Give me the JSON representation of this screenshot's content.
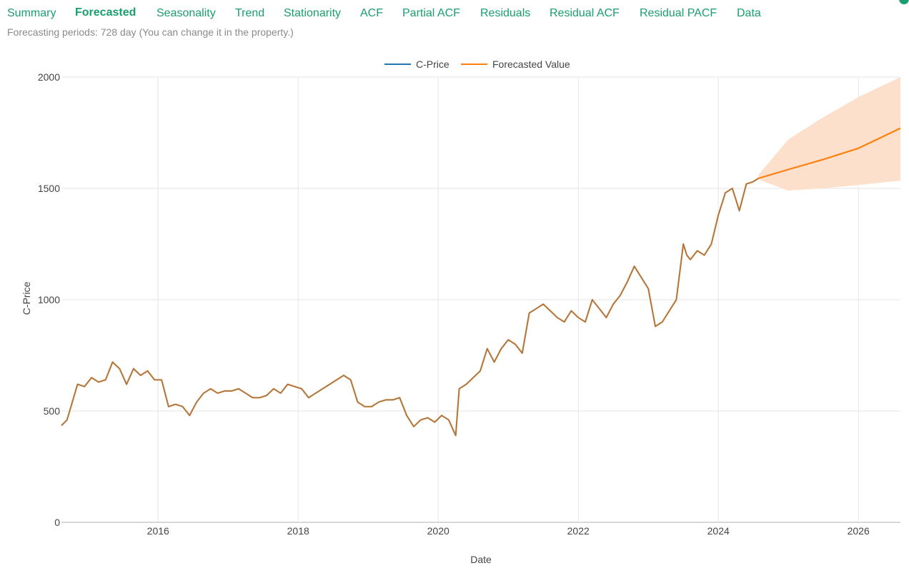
{
  "tabs": [
    {
      "label": "Summary",
      "active": false
    },
    {
      "label": "Forecasted",
      "active": true
    },
    {
      "label": "Seasonality",
      "active": false
    },
    {
      "label": "Trend",
      "active": false
    },
    {
      "label": "Stationarity",
      "active": false
    },
    {
      "label": "ACF",
      "active": false
    },
    {
      "label": "Partial ACF",
      "active": false
    },
    {
      "label": "Residuals",
      "active": false
    },
    {
      "label": "Residual ACF",
      "active": false
    },
    {
      "label": "Residual PACF",
      "active": false
    },
    {
      "label": "Data",
      "active": false
    }
  ],
  "subtitle": "Forecasting periods: 728 day (You can change it in the property.)",
  "colors": {
    "tab_text": "#1a9e6e",
    "actual_series": "#1f77b4",
    "forecast_series": "#ff7f0e",
    "forecast_band": "#fde0cc",
    "grid": "#e6e6e6",
    "axis_line": "#cccccc"
  },
  "chart_data": {
    "type": "line",
    "xlabel": "Date",
    "ylabel": "C-Price",
    "xlim": [
      2014.62,
      2026.6
    ],
    "ylim": [
      0,
      2000
    ],
    "x_ticks": [
      2016,
      2018,
      2020,
      2022,
      2024,
      2026
    ],
    "y_ticks": [
      0,
      500,
      1000,
      1500,
      2000
    ],
    "grid": true,
    "legend_position": "top-center",
    "series": [
      {
        "name": "C-Price",
        "color": "#1f77b4",
        "x": [
          2014.62,
          2014.7,
          2014.85,
          2014.95,
          2015.05,
          2015.15,
          2015.25,
          2015.35,
          2015.45,
          2015.55,
          2015.65,
          2015.75,
          2015.85,
          2015.95,
          2016.05,
          2016.15,
          2016.25,
          2016.35,
          2016.45,
          2016.55,
          2016.65,
          2016.75,
          2016.85,
          2016.95,
          2017.05,
          2017.15,
          2017.25,
          2017.35,
          2017.45,
          2017.55,
          2017.65,
          2017.75,
          2017.85,
          2017.95,
          2018.05,
          2018.15,
          2018.25,
          2018.35,
          2018.45,
          2018.55,
          2018.65,
          2018.75,
          2018.85,
          2018.95,
          2019.05,
          2019.15,
          2019.25,
          2019.35,
          2019.45,
          2019.55,
          2019.65,
          2019.75,
          2019.85,
          2019.95,
          2020.05,
          2020.15,
          2020.25,
          2020.3,
          2020.4,
          2020.5,
          2020.6,
          2020.7,
          2020.8,
          2020.9,
          2021.0,
          2021.1,
          2021.2,
          2021.3,
          2021.4,
          2021.5,
          2021.6,
          2021.7,
          2021.8,
          2021.9,
          2022.0,
          2022.1,
          2022.2,
          2022.3,
          2022.4,
          2022.5,
          2022.6,
          2022.7,
          2022.8,
          2022.9,
          2023.0,
          2023.1,
          2023.2,
          2023.3,
          2023.4,
          2023.5,
          2023.55,
          2023.6,
          2023.7,
          2023.8,
          2023.9,
          2024.0,
          2024.1,
          2024.2,
          2024.3,
          2024.4,
          2024.5,
          2024.57
        ],
        "values": [
          435,
          460,
          620,
          610,
          650,
          630,
          640,
          720,
          690,
          620,
          690,
          660,
          680,
          640,
          640,
          520,
          530,
          520,
          480,
          540,
          580,
          600,
          580,
          590,
          590,
          600,
          580,
          560,
          560,
          570,
          600,
          580,
          620,
          610,
          600,
          560,
          580,
          600,
          620,
          640,
          660,
          640,
          540,
          520,
          520,
          540,
          550,
          550,
          560,
          480,
          430,
          460,
          470,
          450,
          480,
          460,
          390,
          600,
          620,
          650,
          680,
          780,
          720,
          780,
          820,
          800,
          760,
          940,
          960,
          980,
          950,
          920,
          900,
          950,
          920,
          900,
          1000,
          960,
          920,
          980,
          1020,
          1080,
          1150,
          1100,
          1050,
          880,
          900,
          950,
          1000,
          1250,
          1200,
          1180,
          1220,
          1200,
          1250,
          1380,
          1480,
          1500,
          1400,
          1520,
          1530,
          1545
        ]
      },
      {
        "name": "Forecasted Value",
        "color": "#ff7f0e",
        "x": [
          2014.62,
          2014.7,
          2014.85,
          2014.95,
          2015.05,
          2015.15,
          2015.25,
          2015.35,
          2015.45,
          2015.55,
          2015.65,
          2015.75,
          2015.85,
          2015.95,
          2016.05,
          2016.15,
          2016.25,
          2016.35,
          2016.45,
          2016.55,
          2016.65,
          2016.75,
          2016.85,
          2016.95,
          2017.05,
          2017.15,
          2017.25,
          2017.35,
          2017.45,
          2017.55,
          2017.65,
          2017.75,
          2017.85,
          2017.95,
          2018.05,
          2018.15,
          2018.25,
          2018.35,
          2018.45,
          2018.55,
          2018.65,
          2018.75,
          2018.85,
          2018.95,
          2019.05,
          2019.15,
          2019.25,
          2019.35,
          2019.45,
          2019.55,
          2019.65,
          2019.75,
          2019.85,
          2019.95,
          2020.05,
          2020.15,
          2020.25,
          2020.3,
          2020.4,
          2020.5,
          2020.6,
          2020.7,
          2020.8,
          2020.9,
          2021.0,
          2021.1,
          2021.2,
          2021.3,
          2021.4,
          2021.5,
          2021.6,
          2021.7,
          2021.8,
          2021.9,
          2022.0,
          2022.1,
          2022.2,
          2022.3,
          2022.4,
          2022.5,
          2022.6,
          2022.7,
          2022.8,
          2022.9,
          2023.0,
          2023.1,
          2023.2,
          2023.3,
          2023.4,
          2023.5,
          2023.55,
          2023.6,
          2023.7,
          2023.8,
          2023.9,
          2024.0,
          2024.1,
          2024.2,
          2024.3,
          2024.4,
          2024.5,
          2024.57,
          2025.0,
          2025.5,
          2026.0,
          2026.6
        ],
        "values": [
          435,
          460,
          620,
          610,
          650,
          630,
          640,
          720,
          690,
          620,
          690,
          660,
          680,
          640,
          640,
          520,
          530,
          520,
          480,
          540,
          580,
          600,
          580,
          590,
          590,
          600,
          580,
          560,
          560,
          570,
          600,
          580,
          620,
          610,
          600,
          560,
          580,
          600,
          620,
          640,
          660,
          640,
          540,
          520,
          520,
          540,
          550,
          550,
          560,
          480,
          430,
          460,
          470,
          450,
          480,
          460,
          390,
          600,
          620,
          650,
          680,
          780,
          720,
          780,
          820,
          800,
          760,
          940,
          960,
          980,
          950,
          920,
          900,
          950,
          920,
          900,
          1000,
          960,
          920,
          980,
          1020,
          1080,
          1150,
          1100,
          1050,
          880,
          900,
          950,
          1000,
          1250,
          1200,
          1180,
          1220,
          1200,
          1250,
          1380,
          1480,
          1500,
          1400,
          1520,
          1530,
          1545,
          1585,
          1630,
          1680,
          1770
        ],
        "band_x": [
          2024.57,
          2025.0,
          2025.5,
          2026.0,
          2026.6
        ],
        "band_upper": [
          1560,
          1720,
          1820,
          1910,
          2000
        ],
        "band_lower": [
          1540,
          1490,
          1500,
          1515,
          1535
        ]
      }
    ]
  }
}
